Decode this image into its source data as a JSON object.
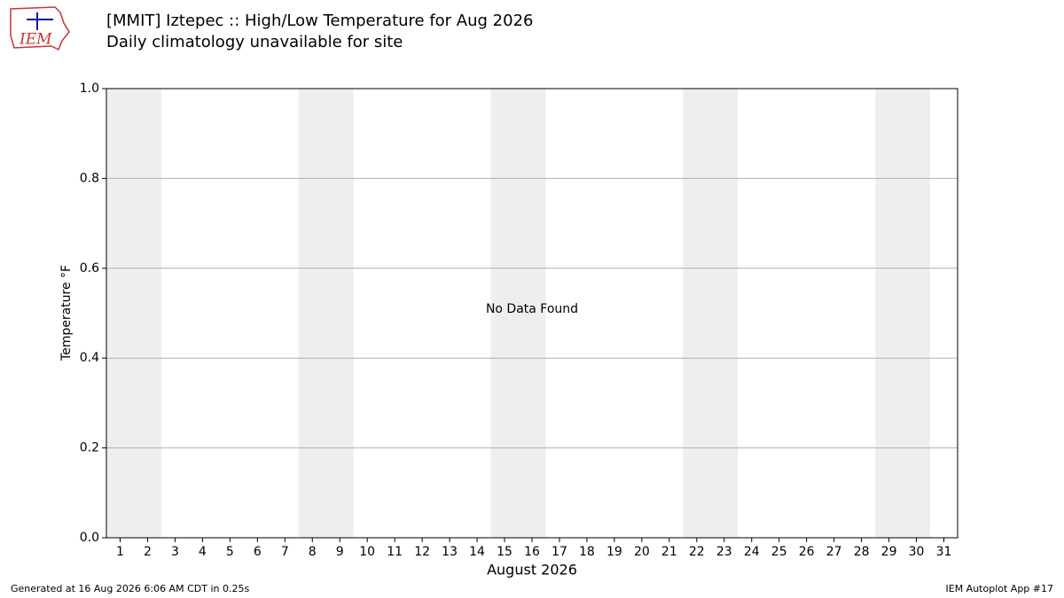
{
  "chart_data": {
    "type": "line",
    "title": "[MMIT] Iztepec :: High/Low Temperature for Aug 2026",
    "subtitle": "Daily climatology unavailable for site",
    "x_label": "August 2026",
    "y_label": "Temperature °F",
    "annotation": "No Data Found",
    "logo_text": "IEM",
    "footer_left": "Generated at 16 Aug 2026 6:06 AM CDT in 0.25s",
    "footer_right": "IEM Autoplot App #17",
    "series": [],
    "shaded_days": [
      1,
      2,
      8,
      9,
      15,
      16,
      22,
      23,
      29,
      30
    ],
    "shade_color": "#eeeeee",
    "xlim": [
      0.5,
      31.5
    ],
    "xticks": [
      1,
      2,
      3,
      4,
      5,
      6,
      7,
      8,
      9,
      10,
      11,
      12,
      13,
      14,
      15,
      16,
      17,
      18,
      19,
      20,
      21,
      22,
      23,
      24,
      25,
      26,
      27,
      28,
      29,
      30,
      31
    ],
    "ylim": [
      0,
      1
    ],
    "yticks": [
      {
        "value": 0,
        "label": "0.0"
      },
      0.2,
      0.4,
      0.6,
      0.8,
      {
        "value": 1,
        "label": "1.0"
      }
    ],
    "grid": true
  }
}
